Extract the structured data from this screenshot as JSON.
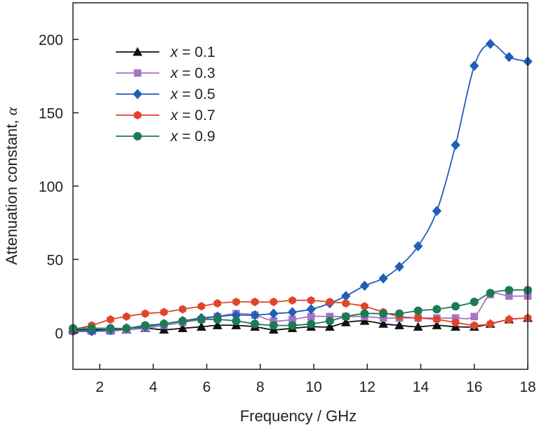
{
  "chart_data": {
    "type": "line",
    "title": "",
    "xlabel": "Frequency / GHz",
    "ylabel_prefix": "Attenuation constant, ",
    "ylabel_symbol": "α",
    "xlim": [
      1,
      18
    ],
    "ylim": [
      -25,
      225
    ],
    "xticks": [
      2,
      4,
      6,
      8,
      10,
      12,
      14,
      16,
      18
    ],
    "yticks": [
      0,
      50,
      100,
      150,
      200
    ],
    "grid": false,
    "legend_position": "top-left",
    "series": [
      {
        "name": "x = 0.1",
        "name_var": "x",
        "name_rest": " = 0.1",
        "color": "#111111",
        "marker": "triangle",
        "x": [
          1.0,
          1.7,
          2.4,
          3.0,
          3.7,
          4.4,
          5.1,
          5.8,
          6.4,
          7.1,
          7.8,
          8.5,
          9.2,
          9.9,
          10.6,
          11.2,
          11.9,
          12.6,
          13.2,
          13.9,
          14.6,
          15.3,
          16.0,
          16.6,
          17.3,
          18.0
        ],
        "y": [
          2,
          2,
          2,
          2,
          3,
          2,
          3,
          4,
          5,
          5,
          4,
          2,
          3,
          4,
          4,
          7,
          8,
          6,
          5,
          4,
          5,
          4,
          4,
          6,
          9,
          10
        ]
      },
      {
        "name": "x = 0.3",
        "name_var": "x",
        "name_rest": " = 0.3",
        "color": "#a673c8",
        "marker": "square",
        "x": [
          1.0,
          1.7,
          2.4,
          3.0,
          3.7,
          4.4,
          5.1,
          5.8,
          6.4,
          7.1,
          7.8,
          8.5,
          9.2,
          9.9,
          10.6,
          11.2,
          11.9,
          12.6,
          13.2,
          13.9,
          14.6,
          15.3,
          16.0,
          16.6,
          17.3,
          18.0
        ],
        "y": [
          1,
          1,
          1,
          2,
          3,
          5,
          7,
          9,
          11,
          13,
          12,
          8,
          9,
          11,
          11,
          11,
          11,
          10,
          10,
          10,
          10,
          10,
          11,
          26,
          25,
          25
        ]
      },
      {
        "name": "x = 0.5",
        "name_var": "x",
        "name_rest": " = 0.5",
        "color": "#1f5fb8",
        "marker": "diamond",
        "x": [
          1.0,
          1.7,
          2.4,
          3.0,
          3.7,
          4.4,
          5.1,
          5.8,
          6.4,
          7.1,
          7.8,
          8.5,
          9.2,
          9.9,
          10.6,
          11.2,
          11.9,
          12.6,
          13.2,
          13.9,
          14.6,
          15.3,
          16.0,
          16.6,
          17.3,
          18.0
        ],
        "y": [
          1,
          1,
          2,
          3,
          4,
          6,
          8,
          10,
          11,
          12,
          12,
          13,
          14,
          16,
          20,
          25,
          32,
          37,
          45,
          59,
          83,
          128,
          182,
          197,
          188,
          185
        ]
      },
      {
        "name": "x = 0.7",
        "name_var": "x",
        "name_rest": " = 0.7",
        "color": "#e0452a",
        "marker": "hexagon",
        "x": [
          1.0,
          1.7,
          2.4,
          3.0,
          3.7,
          4.4,
          5.1,
          5.8,
          6.4,
          7.1,
          7.8,
          8.5,
          9.2,
          9.9,
          10.6,
          11.2,
          11.9,
          12.6,
          13.2,
          13.9,
          14.6,
          15.3,
          16.0,
          16.6,
          17.3,
          18.0
        ],
        "y": [
          2,
          5,
          9,
          11,
          13,
          14,
          16,
          18,
          20,
          21,
          21,
          21,
          22,
          22,
          21,
          20,
          18,
          14,
          11,
          10,
          9,
          7,
          5,
          6,
          9,
          10
        ]
      },
      {
        "name": "x = 0.9",
        "name_var": "x",
        "name_rest": " = 0.9",
        "color": "#1e7a55",
        "marker": "circle",
        "x": [
          1.0,
          1.7,
          2.4,
          3.0,
          3.7,
          4.4,
          5.1,
          5.8,
          6.4,
          7.1,
          7.8,
          8.5,
          9.2,
          9.9,
          10.6,
          11.2,
          11.9,
          12.6,
          13.2,
          13.9,
          14.6,
          15.3,
          16.0,
          16.6,
          17.3,
          18.0
        ],
        "y": [
          3,
          3,
          3,
          3,
          5,
          6,
          8,
          9,
          9,
          8,
          6,
          5,
          5,
          6,
          8,
          11,
          13,
          13,
          13,
          15,
          16,
          18,
          21,
          27,
          29,
          29
        ]
      }
    ]
  }
}
